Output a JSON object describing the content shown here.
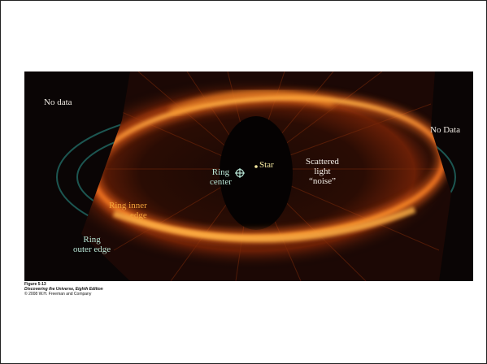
{
  "figure": {
    "labels": {
      "no_data_left": "No data",
      "no_data_right": "No Data",
      "star": "Star",
      "ring_center_1": "Ring",
      "ring_center_2": "center",
      "scattered_1": "Scattered",
      "scattered_2": "light",
      "scattered_3": "“noise”",
      "ring_inner_1": "Ring inner",
      "ring_inner_2": "edge",
      "ring_outer_1": "Ring",
      "ring_outer_2": "outer edge"
    },
    "colors": {
      "background": "#0a0505",
      "ring": "#e8641c",
      "ring_bright": "#ffb347",
      "ellipse_outline": "#1f5f5a",
      "label_cyan": "#b9e6d6",
      "label_white": "#f2ede6",
      "star_marker": "#f5e8a0"
    }
  },
  "caption": {
    "figure_number": "Figure 5-13",
    "book": "Discovering the Universe, Eighth Edition",
    "copyright": "© 2008 W.H. Freeman and Company"
  }
}
